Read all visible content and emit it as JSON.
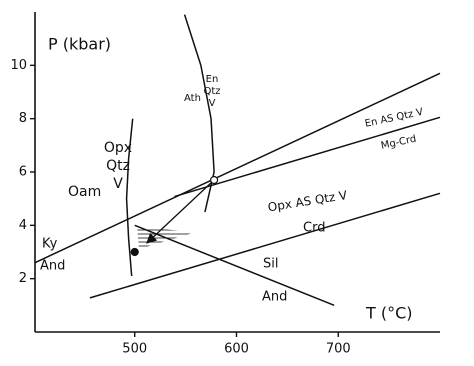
{
  "chart_data": {
    "type": "line",
    "x_label": "T (°C)",
    "y_label": "P (kbar)",
    "xlim": [
      402,
      800
    ],
    "ylim": [
      0,
      12
    ],
    "xticks": [
      500,
      600,
      700
    ],
    "yticks": [
      2,
      4,
      6,
      8,
      10
    ],
    "color": "#111111",
    "series": [
      {
        "x": [
          402,
          800
        ],
        "values": [
          2.6,
          9.7
        ]
      },
      {
        "x": [
          500,
          696
        ],
        "values": [
          4.0,
          1.0
        ]
      },
      {
        "x": [
          456,
          800
        ],
        "values": [
          1.28,
          5.2
        ]
      },
      {
        "x": [
          539,
          800
        ],
        "values": [
          5.08,
          8.05
        ]
      },
      {
        "x": [
          498,
          494,
          492,
          494,
          497
        ],
        "values": [
          8.0,
          6.5,
          5.0,
          3.5,
          2.1
        ]
      },
      {
        "x": [
          549,
          565,
          575,
          578,
          572,
          569
        ],
        "values": [
          11.9,
          10.0,
          8.0,
          6.0,
          5.0,
          4.5
        ]
      }
    ],
    "markers": [
      {
        "x": 578,
        "y": 5.7,
        "fill": "#ffffff"
      },
      {
        "x": 500,
        "y": 3.0,
        "fill": "#111111"
      }
    ],
    "annotations": [
      "Ky",
      "And",
      "Sil",
      "And",
      "Opx AS Qtz V",
      "Crd",
      "En AS Qtz V",
      "Mg-Crd",
      "Oam",
      "Opx",
      "Qtz",
      "V",
      "Ath",
      "En",
      "Qtz",
      "V"
    ]
  }
}
